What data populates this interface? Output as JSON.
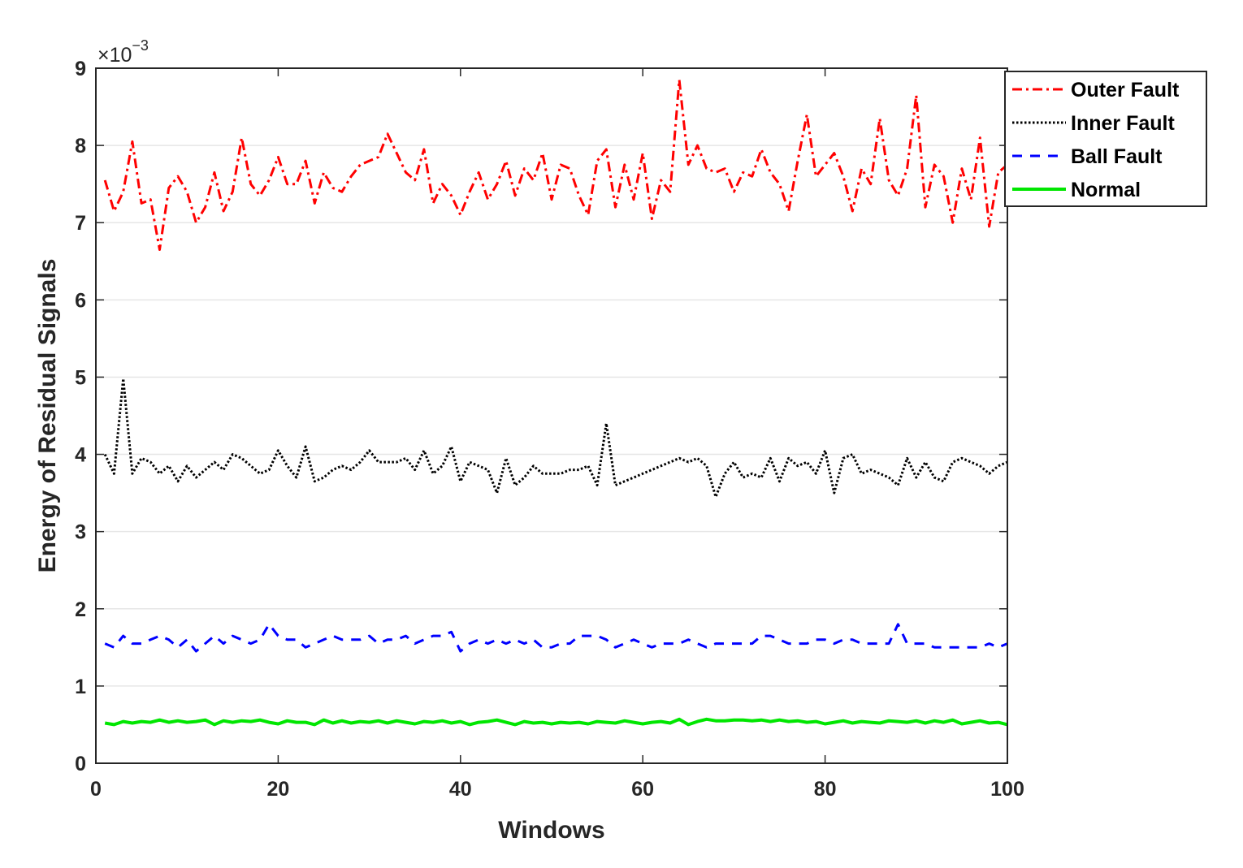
{
  "chart_data": {
    "type": "line",
    "title": "",
    "xlabel": "Windows",
    "ylabel": "Energy of Residual Signals",
    "y_multiplier_label": "×10",
    "y_multiplier_exponent": "−3",
    "xlim": [
      0,
      100
    ],
    "ylim": [
      0,
      9
    ],
    "xticks": [
      0,
      20,
      40,
      60,
      80,
      100
    ],
    "yticks": [
      0,
      1,
      2,
      3,
      4,
      5,
      6,
      7,
      8,
      9
    ],
    "grid": "horizontal",
    "legend_position": "top-right, outside",
    "series": [
      {
        "name": "Outer Fault",
        "color": "#ff0000",
        "style": "dash-dot",
        "x": [
          1,
          2,
          3,
          4,
          5,
          6,
          7,
          8,
          9,
          10,
          11,
          12,
          13,
          14,
          15,
          16,
          17,
          18,
          19,
          20,
          21,
          22,
          23,
          24,
          25,
          26,
          27,
          28,
          29,
          30,
          31,
          32,
          33,
          34,
          35,
          36,
          37,
          38,
          39,
          40,
          41,
          42,
          43,
          44,
          45,
          46,
          47,
          48,
          49,
          50,
          51,
          52,
          53,
          54,
          55,
          56,
          57,
          58,
          59,
          60,
          61,
          62,
          63,
          64,
          65,
          66,
          67,
          68,
          69,
          70,
          71,
          72,
          73,
          74,
          75,
          76,
          77,
          78,
          79,
          80,
          81,
          82,
          83,
          84,
          85,
          86,
          87,
          88,
          89,
          90,
          91,
          92,
          93,
          94,
          95,
          96,
          97,
          98,
          99,
          100
        ],
        "values": [
          7.55,
          7.15,
          7.4,
          8.05,
          7.25,
          7.3,
          6.65,
          7.45,
          7.6,
          7.4,
          7.0,
          7.2,
          7.65,
          7.15,
          7.4,
          8.1,
          7.5,
          7.35,
          7.55,
          7.85,
          7.5,
          7.5,
          7.8,
          7.25,
          7.65,
          7.45,
          7.4,
          7.6,
          7.75,
          7.8,
          7.85,
          8.15,
          7.9,
          7.65,
          7.55,
          7.95,
          7.25,
          7.5,
          7.35,
          7.1,
          7.4,
          7.65,
          7.3,
          7.5,
          7.8,
          7.35,
          7.7,
          7.55,
          7.9,
          7.3,
          7.75,
          7.7,
          7.35,
          7.1,
          7.8,
          7.95,
          7.2,
          7.75,
          7.3,
          7.9,
          7.05,
          7.55,
          7.4,
          8.85,
          7.75,
          8.0,
          7.7,
          7.65,
          7.7,
          7.4,
          7.65,
          7.6,
          7.95,
          7.65,
          7.5,
          7.15,
          7.8,
          8.4,
          7.6,
          7.75,
          7.9,
          7.6,
          7.15,
          7.7,
          7.5,
          8.35,
          7.55,
          7.35,
          7.7,
          8.65,
          7.2,
          7.75,
          7.6,
          7.0,
          7.7,
          7.3,
          8.1,
          6.95,
          7.65,
          7.75
        ]
      },
      {
        "name": "Inner Fault",
        "color": "#000000",
        "style": "dotted",
        "x": [
          1,
          2,
          3,
          4,
          5,
          6,
          7,
          8,
          9,
          10,
          11,
          12,
          13,
          14,
          15,
          16,
          17,
          18,
          19,
          20,
          21,
          22,
          23,
          24,
          25,
          26,
          27,
          28,
          29,
          30,
          31,
          32,
          33,
          34,
          35,
          36,
          37,
          38,
          39,
          40,
          41,
          42,
          43,
          44,
          45,
          46,
          47,
          48,
          49,
          50,
          51,
          52,
          53,
          54,
          55,
          56,
          57,
          58,
          59,
          60,
          61,
          62,
          63,
          64,
          65,
          66,
          67,
          68,
          69,
          70,
          71,
          72,
          73,
          74,
          75,
          76,
          77,
          78,
          79,
          80,
          81,
          82,
          83,
          84,
          85,
          86,
          87,
          88,
          89,
          90,
          91,
          92,
          93,
          94,
          95,
          96,
          97,
          98,
          99,
          100
        ],
        "values": [
          4.0,
          3.75,
          4.98,
          3.75,
          3.95,
          3.9,
          3.75,
          3.85,
          3.65,
          3.85,
          3.7,
          3.8,
          3.9,
          3.8,
          4.0,
          3.95,
          3.85,
          3.75,
          3.8,
          4.05,
          3.85,
          3.7,
          4.1,
          3.65,
          3.7,
          3.8,
          3.85,
          3.8,
          3.9,
          4.05,
          3.9,
          3.9,
          3.9,
          3.95,
          3.8,
          4.05,
          3.75,
          3.85,
          4.1,
          3.65,
          3.9,
          3.85,
          3.8,
          3.5,
          3.95,
          3.6,
          3.7,
          3.85,
          3.75,
          3.75,
          3.75,
          3.8,
          3.8,
          3.85,
          3.6,
          4.4,
          3.6,
          3.65,
          3.7,
          3.75,
          3.8,
          3.85,
          3.9,
          3.95,
          3.9,
          3.95,
          3.85,
          3.45,
          3.75,
          3.9,
          3.7,
          3.75,
          3.7,
          3.95,
          3.65,
          3.95,
          3.85,
          3.9,
          3.75,
          4.05,
          3.5,
          3.95,
          4.0,
          3.75,
          3.8,
          3.75,
          3.7,
          3.6,
          3.95,
          3.7,
          3.9,
          3.7,
          3.65,
          3.9,
          3.95,
          3.9,
          3.85,
          3.75,
          3.85,
          3.9
        ]
      },
      {
        "name": "Ball Fault",
        "color": "#0000ff",
        "style": "dashed",
        "x": [
          1,
          2,
          3,
          4,
          5,
          6,
          7,
          8,
          9,
          10,
          11,
          12,
          13,
          14,
          15,
          16,
          17,
          18,
          19,
          20,
          21,
          22,
          23,
          24,
          25,
          26,
          27,
          28,
          29,
          30,
          31,
          32,
          33,
          34,
          35,
          36,
          37,
          38,
          39,
          40,
          41,
          42,
          43,
          44,
          45,
          46,
          47,
          48,
          49,
          50,
          51,
          52,
          53,
          54,
          55,
          56,
          57,
          58,
          59,
          60,
          61,
          62,
          63,
          64,
          65,
          66,
          67,
          68,
          69,
          70,
          71,
          72,
          73,
          74,
          75,
          76,
          77,
          78,
          79,
          80,
          81,
          82,
          83,
          84,
          85,
          86,
          87,
          88,
          89,
          90,
          91,
          92,
          93,
          94,
          95,
          96,
          97,
          98,
          99,
          100
        ],
        "values": [
          1.55,
          1.5,
          1.65,
          1.55,
          1.55,
          1.6,
          1.65,
          1.6,
          1.5,
          1.6,
          1.45,
          1.55,
          1.65,
          1.55,
          1.65,
          1.6,
          1.55,
          1.6,
          1.8,
          1.65,
          1.6,
          1.6,
          1.5,
          1.55,
          1.6,
          1.65,
          1.6,
          1.6,
          1.6,
          1.65,
          1.55,
          1.6,
          1.6,
          1.65,
          1.55,
          1.6,
          1.65,
          1.65,
          1.7,
          1.45,
          1.55,
          1.6,
          1.55,
          1.6,
          1.55,
          1.6,
          1.55,
          1.6,
          1.5,
          1.5,
          1.55,
          1.55,
          1.65,
          1.65,
          1.65,
          1.6,
          1.5,
          1.55,
          1.6,
          1.55,
          1.5,
          1.55,
          1.55,
          1.55,
          1.6,
          1.55,
          1.5,
          1.55,
          1.55,
          1.55,
          1.55,
          1.55,
          1.65,
          1.65,
          1.6,
          1.55,
          1.55,
          1.55,
          1.6,
          1.6,
          1.55,
          1.6,
          1.6,
          1.55,
          1.55,
          1.55,
          1.55,
          1.8,
          1.55,
          1.55,
          1.55,
          1.5,
          1.5,
          1.5,
          1.5,
          1.5,
          1.5,
          1.55,
          1.5,
          1.55
        ]
      },
      {
        "name": "Normal",
        "color": "#00e600",
        "style": "solid",
        "x": [
          1,
          2,
          3,
          4,
          5,
          6,
          7,
          8,
          9,
          10,
          11,
          12,
          13,
          14,
          15,
          16,
          17,
          18,
          19,
          20,
          21,
          22,
          23,
          24,
          25,
          26,
          27,
          28,
          29,
          30,
          31,
          32,
          33,
          34,
          35,
          36,
          37,
          38,
          39,
          40,
          41,
          42,
          43,
          44,
          45,
          46,
          47,
          48,
          49,
          50,
          51,
          52,
          53,
          54,
          55,
          56,
          57,
          58,
          59,
          60,
          61,
          62,
          63,
          64,
          65,
          66,
          67,
          68,
          69,
          70,
          71,
          72,
          73,
          74,
          75,
          76,
          77,
          78,
          79,
          80,
          81,
          82,
          83,
          84,
          85,
          86,
          87,
          88,
          89,
          90,
          91,
          92,
          93,
          94,
          95,
          96,
          97,
          98,
          99,
          100
        ],
        "values": [
          0.52,
          0.5,
          0.54,
          0.52,
          0.54,
          0.53,
          0.56,
          0.53,
          0.55,
          0.53,
          0.54,
          0.56,
          0.5,
          0.55,
          0.53,
          0.55,
          0.54,
          0.56,
          0.53,
          0.51,
          0.55,
          0.53,
          0.53,
          0.5,
          0.56,
          0.52,
          0.55,
          0.52,
          0.54,
          0.53,
          0.55,
          0.52,
          0.55,
          0.53,
          0.51,
          0.54,
          0.53,
          0.55,
          0.52,
          0.54,
          0.5,
          0.53,
          0.54,
          0.56,
          0.53,
          0.5,
          0.54,
          0.52,
          0.53,
          0.51,
          0.53,
          0.52,
          0.53,
          0.51,
          0.54,
          0.53,
          0.52,
          0.55,
          0.53,
          0.51,
          0.53,
          0.54,
          0.52,
          0.57,
          0.5,
          0.54,
          0.57,
          0.55,
          0.55,
          0.56,
          0.56,
          0.55,
          0.56,
          0.54,
          0.56,
          0.54,
          0.55,
          0.53,
          0.54,
          0.51,
          0.53,
          0.55,
          0.52,
          0.54,
          0.53,
          0.52,
          0.55,
          0.54,
          0.53,
          0.55,
          0.52,
          0.55,
          0.53,
          0.56,
          0.51,
          0.53,
          0.55,
          0.52,
          0.53,
          0.5
        ]
      }
    ]
  }
}
